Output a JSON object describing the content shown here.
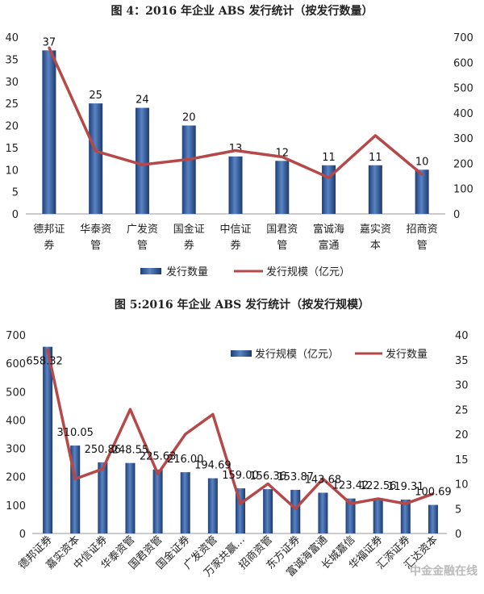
{
  "watermark": "中金金融在线",
  "chart_data": [
    {
      "type": "bar",
      "title": "图 4：2016 年企业 ABS 发行统计（按发行数量）",
      "categories": [
        "德邦证券",
        "华泰资管",
        "广发资管",
        "国金证券",
        "中信证券",
        "国君资管",
        "富诚海富通",
        "嘉实资本",
        "招商资管"
      ],
      "category_lines": [
        [
          "德邦证",
          "券"
        ],
        [
          "华泰资",
          "管"
        ],
        [
          "广发资",
          "管"
        ],
        [
          "国金证",
          "券"
        ],
        [
          "中信证",
          "券"
        ],
        [
          "国君资",
          "管"
        ],
        [
          "富诚海",
          "富通"
        ],
        [
          "嘉实资",
          "本"
        ],
        [
          "招商资",
          "管"
        ]
      ],
      "series": [
        {
          "name": "发行数量",
          "kind": "bar",
          "axis": "left",
          "values": [
            37,
            25,
            24,
            20,
            13,
            12,
            11,
            11,
            10
          ],
          "labels": [
            "37",
            "25",
            "24",
            "20",
            "13",
            "12",
            "11",
            "11",
            "10"
          ]
        },
        {
          "name": "发行规模（亿元）",
          "kind": "line",
          "axis": "right",
          "values": [
            658.32,
            248.55,
            194.69,
            216.0,
            250.86,
            225.63,
            143.68,
            310.05,
            156.36
          ]
        }
      ],
      "ylim_left": [
        0,
        40
      ],
      "yticks_left": [
        "0",
        "5",
        "10",
        "15",
        "20",
        "25",
        "30",
        "35",
        "40"
      ],
      "ylim_right": [
        0,
        700
      ],
      "yticks_right": [
        "0",
        "100",
        "200",
        "300",
        "400",
        "500",
        "600",
        "700"
      ],
      "legend": "bottom",
      "grid": false
    },
    {
      "type": "bar",
      "title": "图 5:2016 年企业 ABS 发行统计（按发行规模）",
      "categories": [
        "德邦证券",
        "嘉实资本",
        "中信证券",
        "华泰资管",
        "国君资管",
        "国金证券",
        "广发资管",
        "万家共赢…",
        "招商资管",
        "东方证券",
        "富诚海富通",
        "长城嘉信",
        "华福证券",
        "汇添证券",
        "汇达资本"
      ],
      "series": [
        {
          "name": "发行规模（亿元）",
          "kind": "bar",
          "axis": "left",
          "values": [
            658.32,
            310.05,
            250.86,
            248.55,
            225.63,
            216.0,
            194.69,
            159.0,
            156.36,
            153.87,
            143.68,
            123.42,
            122.56,
            119.31,
            100.69
          ],
          "labels": [
            "658.32",
            "310.05",
            "250.86",
            "248.55",
            "225.63",
            "216.00",
            "194.69",
            "159.00",
            "156.36",
            "153.87",
            "143.68",
            "123.42",
            "122.56",
            "119.31",
            "100.69"
          ]
        },
        {
          "name": "发行数量",
          "kind": "line",
          "axis": "right",
          "values": [
            37,
            11,
            13,
            25,
            12,
            20,
            24,
            6,
            10,
            5,
            11,
            6,
            7,
            6,
            8
          ]
        }
      ],
      "ylim_left": [
        0,
        700
      ],
      "yticks_left": [
        "0",
        "100",
        "200",
        "300",
        "400",
        "500",
        "600",
        "700"
      ],
      "ylim_right": [
        0,
        40
      ],
      "yticks_right": [
        "0",
        "5",
        "10",
        "15",
        "20",
        "25",
        "30",
        "35",
        "40"
      ],
      "legend": "top-right",
      "grid": false
    }
  ]
}
